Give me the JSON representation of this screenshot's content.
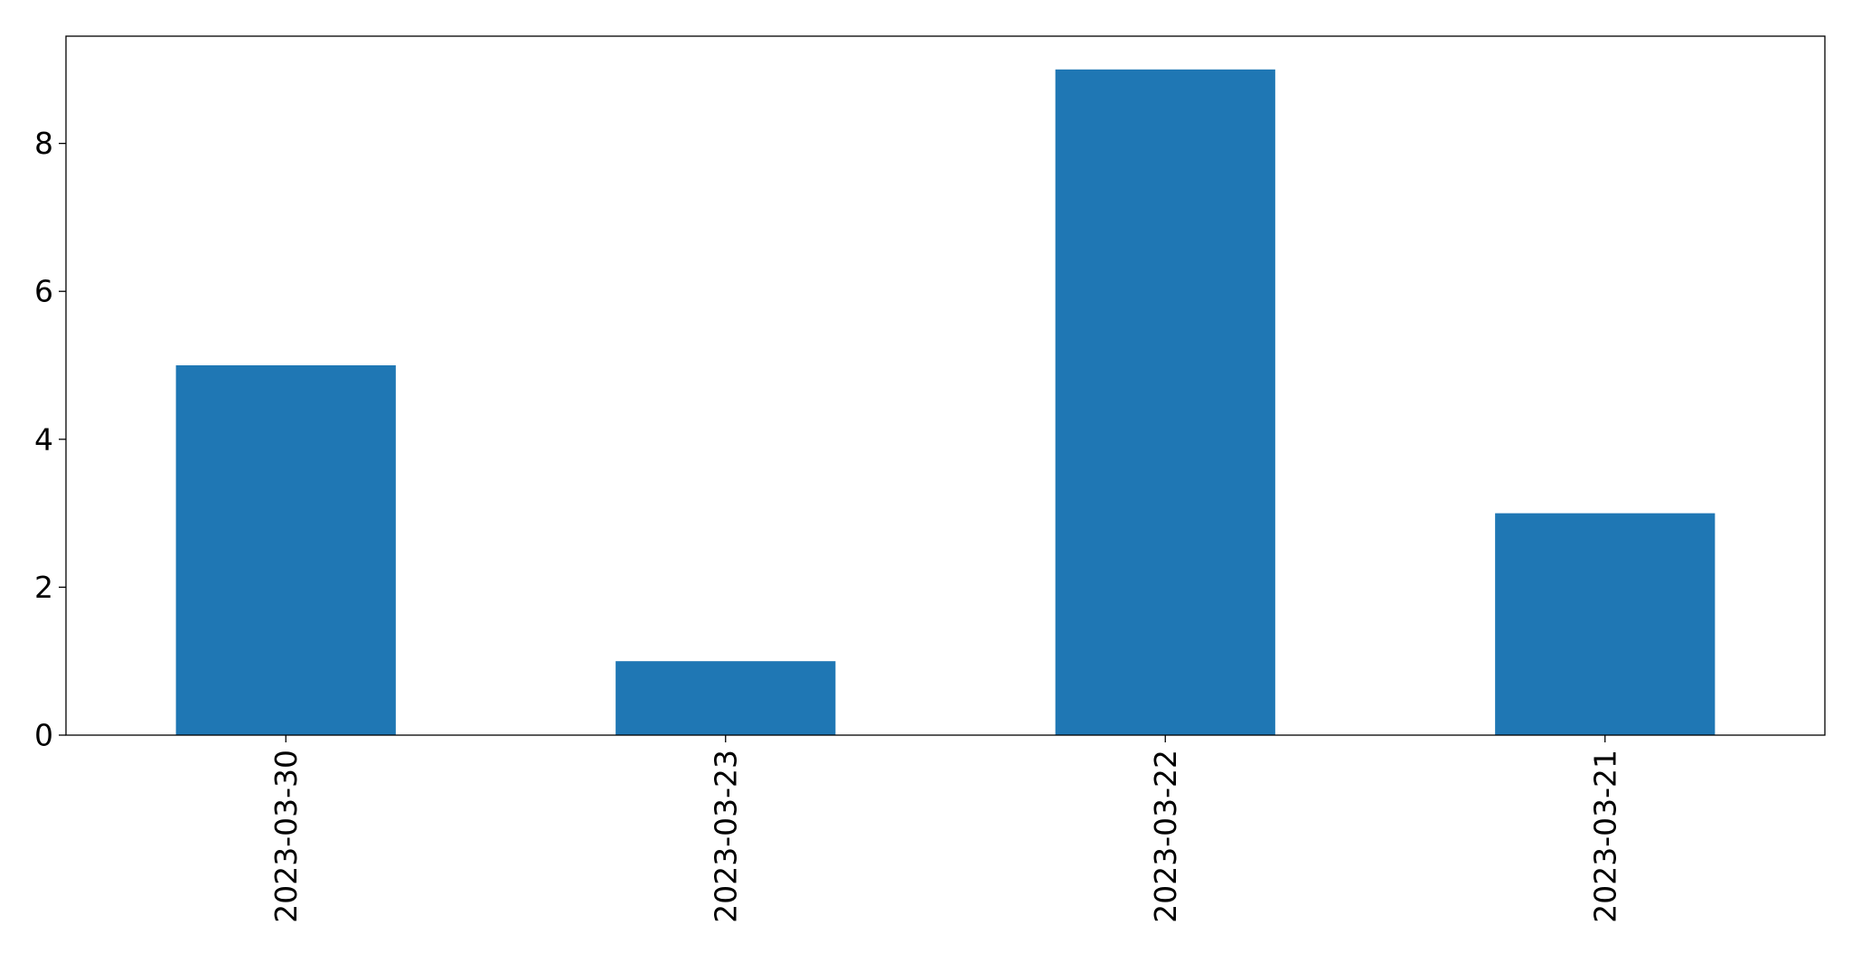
{
  "chart_data": {
    "type": "bar",
    "categories": [
      "2023-03-30",
      "2023-03-23",
      "2023-03-22",
      "2023-03-21"
    ],
    "values": [
      5,
      1,
      9,
      3
    ],
    "title": "",
    "xlabel": "",
    "ylabel": "",
    "ylim": [
      0,
      9.45
    ],
    "yticks": [
      0,
      2,
      4,
      6,
      8
    ],
    "bar_color": "#1f77b4",
    "grid": false,
    "legend": false
  }
}
